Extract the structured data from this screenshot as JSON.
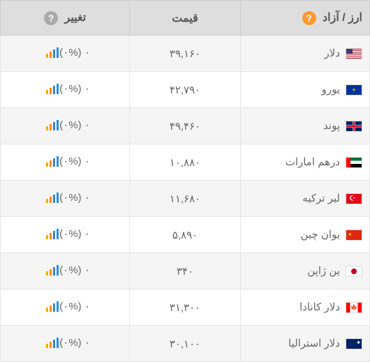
{
  "headers": {
    "currency": "ارز / آزاد",
    "price": "قیمت",
    "change": "تغییر"
  },
  "chart_icon_colors": {
    "bar1": "#ffa500",
    "bar2": "#ff8c00",
    "bar3": "#4682b4",
    "bar4": "#1e90ff"
  },
  "rows": [
    {
      "flag_class": "flag-us",
      "name": "دلار",
      "price": "۳۹,۱۶۰",
      "change": "(۰%) ۰"
    },
    {
      "flag_class": "flag-eu",
      "name": "یورو",
      "price": "۴۲,۷۹۰",
      "change": "(۰%) ۰"
    },
    {
      "flag_class": "flag-gb",
      "name": "پوند",
      "price": "۴۹,۴۶۰",
      "change": "(۰%) ۰"
    },
    {
      "flag_class": "flag-ae",
      "name": "درهم امارات",
      "price": "۱۰,۸۸۰",
      "change": "(۰%) ۰"
    },
    {
      "flag_class": "flag-tr",
      "name": "لیر ترکیه",
      "price": "۱۱,۶۸۰",
      "change": "(۰%) ۰"
    },
    {
      "flag_class": "flag-cn",
      "name": "یوان چین",
      "price": "۵,۸۹۰",
      "change": "(۰%) ۰"
    },
    {
      "flag_class": "flag-jp",
      "name": "ین ژاپن",
      "price": "۳۴۰",
      "change": "(۰%) ۰"
    },
    {
      "flag_class": "flag-ca",
      "name": "دلار کانادا",
      "price": "۳۱,۳۰۰",
      "change": "(۰%) ۰"
    },
    {
      "flag_class": "flag-au",
      "name": "دلار استرالیا",
      "price": "۳۰,۱۰۰",
      "change": "(۰%) ۰"
    }
  ]
}
